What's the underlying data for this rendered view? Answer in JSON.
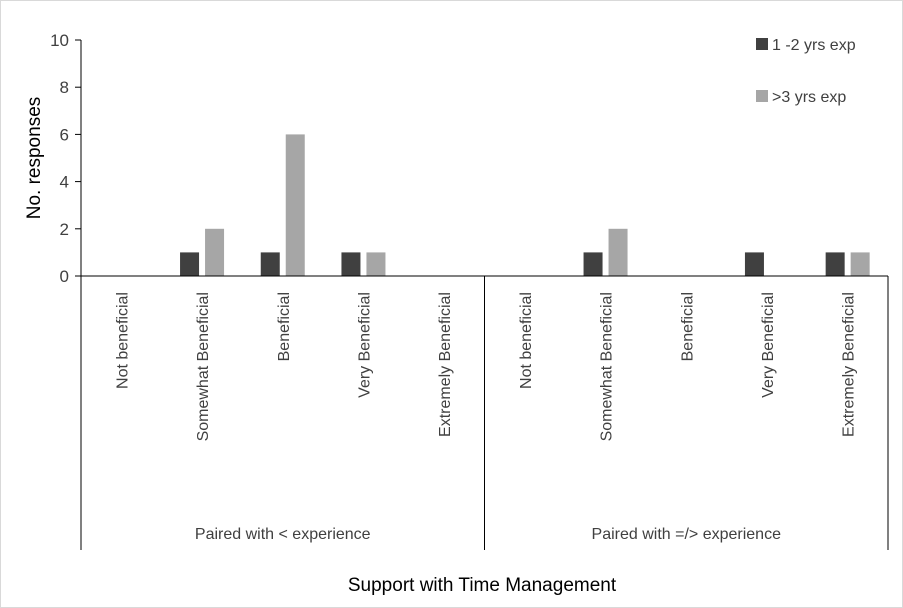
{
  "chart_data": {
    "type": "bar",
    "title": "",
    "xlabel": "Support with Time Management",
    "ylabel": "No. responses",
    "ylim": [
      0,
      10
    ],
    "yticks": [
      "0",
      "2",
      "4",
      "6",
      "8",
      "10"
    ],
    "groups": [
      {
        "label": "Paired with < experience",
        "categories": [
          "Not beneficial",
          "Somewhat  Beneficial",
          "Beneficial",
          "Very Beneficial",
          "Extremely Beneficial"
        ]
      },
      {
        "label": "Paired with =/> experience",
        "categories": [
          "Not beneficial",
          "Somewhat  Beneficial",
          "Beneficial",
          "Very Beneficial",
          "Extremely Beneficial"
        ]
      }
    ],
    "series": [
      {
        "name": "1 -2 yrs exp",
        "color": "#404040",
        "values": [
          0,
          1,
          1,
          1,
          0,
          0,
          1,
          0,
          1,
          1
        ]
      },
      {
        "name": ">3 yrs exp",
        "color": "#a6a6a6",
        "values": [
          0,
          2,
          6,
          1,
          0,
          0,
          2,
          0,
          0,
          1
        ]
      }
    ],
    "grid": false,
    "legend_position": "top-right"
  }
}
